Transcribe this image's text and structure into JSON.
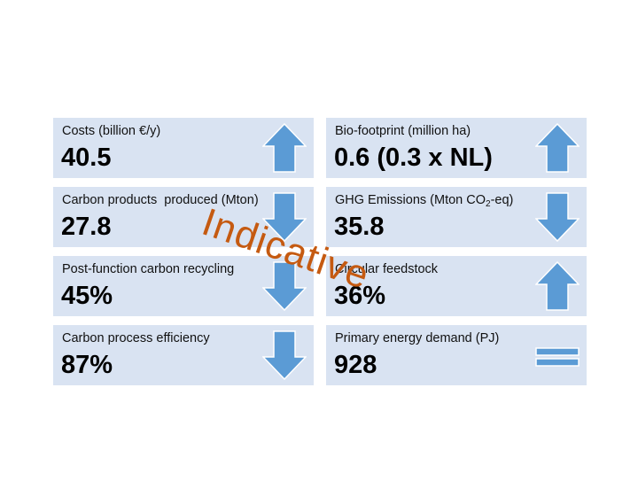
{
  "arrow_color": "#5b9bd5",
  "arrow_outline": "#ffffff",
  "card_background": "#d9e3f2",
  "watermark": {
    "text": "Indicative",
    "color": "#c55a11"
  },
  "cards": [
    {
      "label": "Costs (billion €/y)",
      "value": "40.5",
      "indicator": "up"
    },
    {
      "label": "Bio-footprint (million ha)",
      "value": "0.6 (0.3 x NL)",
      "indicator": "up"
    },
    {
      "label": "Carbon products  produced (Mton)",
      "value": "27.8",
      "indicator": "down"
    },
    {
      "label_main": "GHG Emissions (Mton CO",
      "label_sub": "2",
      "label_tail": "-eq)",
      "value": "35.8",
      "indicator": "down"
    },
    {
      "label": "Post-function carbon recycling",
      "value": "45%",
      "indicator": "down"
    },
    {
      "label": "Circular feedstock",
      "value": "36%",
      "indicator": "up"
    },
    {
      "label": "Carbon process efficiency",
      "value": "87%",
      "indicator": "down"
    },
    {
      "label": "Primary energy demand (PJ)",
      "value": "928",
      "indicator": "equal"
    }
  ]
}
